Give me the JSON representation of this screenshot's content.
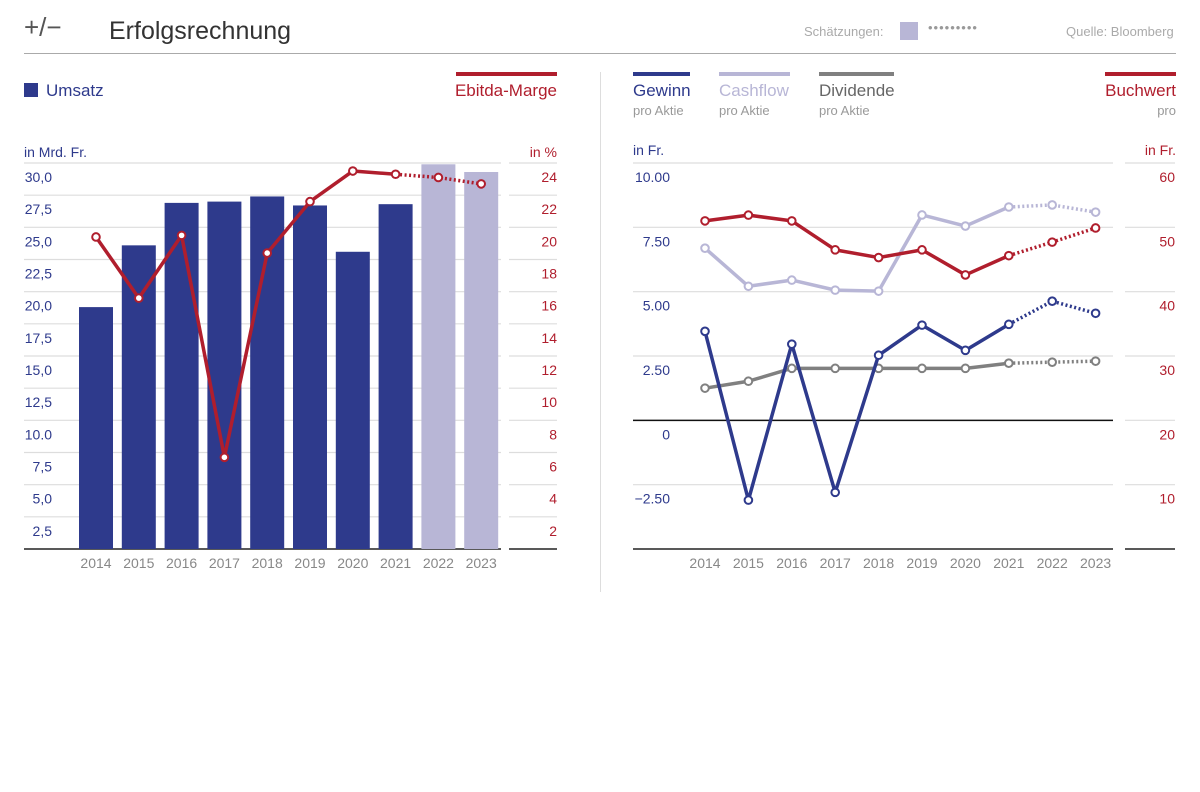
{
  "header": {
    "logo": "+/−",
    "title": "Erfolgsrechnung",
    "estimates_label": "Schätzungen:",
    "estimates_line": "•••••••••",
    "source": "Quelle: Bloomberg"
  },
  "colors": {
    "umsatz": "#2e3a8c",
    "estimate": "#b8b6d6",
    "ebitda": "#b01e2d",
    "gewinn": "#2e3a8c",
    "cashflow": "#b8b6d6",
    "dividende": "#808080",
    "buchwert": "#b01e2d"
  },
  "chart_data": [
    {
      "type": "bar",
      "title": "Umsatz / Ebitda-Marge",
      "categories": [
        "2014",
        "2015",
        "2016",
        "2017",
        "2018",
        "2019",
        "2020",
        "2021",
        "2022",
        "2023"
      ],
      "estimate_from": "2022",
      "legend": {
        "bars": "Umsatz",
        "line": "Ebitda-Marge"
      },
      "ylabel": "in Mrd. Fr.",
      "y2label": "in %",
      "ylim": [
        0,
        30
      ],
      "y2lim": [
        0,
        24
      ],
      "yticks": [
        "2,5",
        "5,0",
        "7,5",
        "10.0",
        "12,5",
        "15,0",
        "17,5",
        "20,0",
        "22,5",
        "25,0",
        "27,5",
        "30,0"
      ],
      "y2ticks": [
        "2",
        "4",
        "6",
        "8",
        "10",
        "12",
        "14",
        "16",
        "18",
        "20",
        "22",
        "24"
      ],
      "series": [
        {
          "name": "Umsatz",
          "axis": "left",
          "values": [
            18.8,
            23.6,
            26.9,
            27.0,
            27.4,
            26.7,
            23.1,
            26.8,
            29.9,
            29.3
          ]
        },
        {
          "name": "Ebitda-Marge",
          "axis": "right",
          "values": [
            19.4,
            15.6,
            19.5,
            5.7,
            18.4,
            21.6,
            23.5,
            23.3,
            23.1,
            22.7
          ]
        }
      ]
    },
    {
      "type": "line",
      "title": "Pro Aktie",
      "categories": [
        "2014",
        "2015",
        "2016",
        "2017",
        "2018",
        "2019",
        "2020",
        "2021",
        "2022",
        "2023"
      ],
      "estimate_from": "2021",
      "ylabel": "in Fr.",
      "y2label": "in Fr.",
      "ylim": [
        -5,
        10
      ],
      "y2lim": [
        0,
        60
      ],
      "yticks": [
        "−2.50",
        "0",
        "2.50",
        "5.00",
        "7.50",
        "10.00"
      ],
      "y2ticks": [
        "10",
        "20",
        "30",
        "40",
        "50",
        "60"
      ],
      "legend": [
        {
          "name": "Gewinn",
          "sub": "pro Aktie"
        },
        {
          "name": "Cashflow",
          "sub": "pro Aktie"
        },
        {
          "name": "Dividende",
          "sub": "pro Aktie"
        },
        {
          "name": "Buchwert",
          "sub": "pro"
        }
      ],
      "series": [
        {
          "name": "Gewinn",
          "axis": "left",
          "values": [
            3.46,
            -3.1,
            2.96,
            -2.8,
            2.53,
            3.7,
            2.72,
            3.73,
            4.63,
            4.16
          ]
        },
        {
          "name": "Cashflow",
          "axis": "left",
          "values": [
            6.69,
            5.21,
            5.45,
            5.06,
            5.02,
            7.98,
            7.55,
            8.29,
            8.37,
            8.09
          ]
        },
        {
          "name": "Dividende",
          "axis": "left",
          "values": [
            1.25,
            1.52,
            2.02,
            2.02,
            2.02,
            2.02,
            2.02,
            2.22,
            2.26,
            2.3
          ]
        },
        {
          "name": "Buchwert",
          "axis": "right",
          "values": [
            51.0,
            51.9,
            51.0,
            46.5,
            45.3,
            46.5,
            42.6,
            45.6,
            47.7,
            49.9
          ]
        }
      ]
    }
  ]
}
